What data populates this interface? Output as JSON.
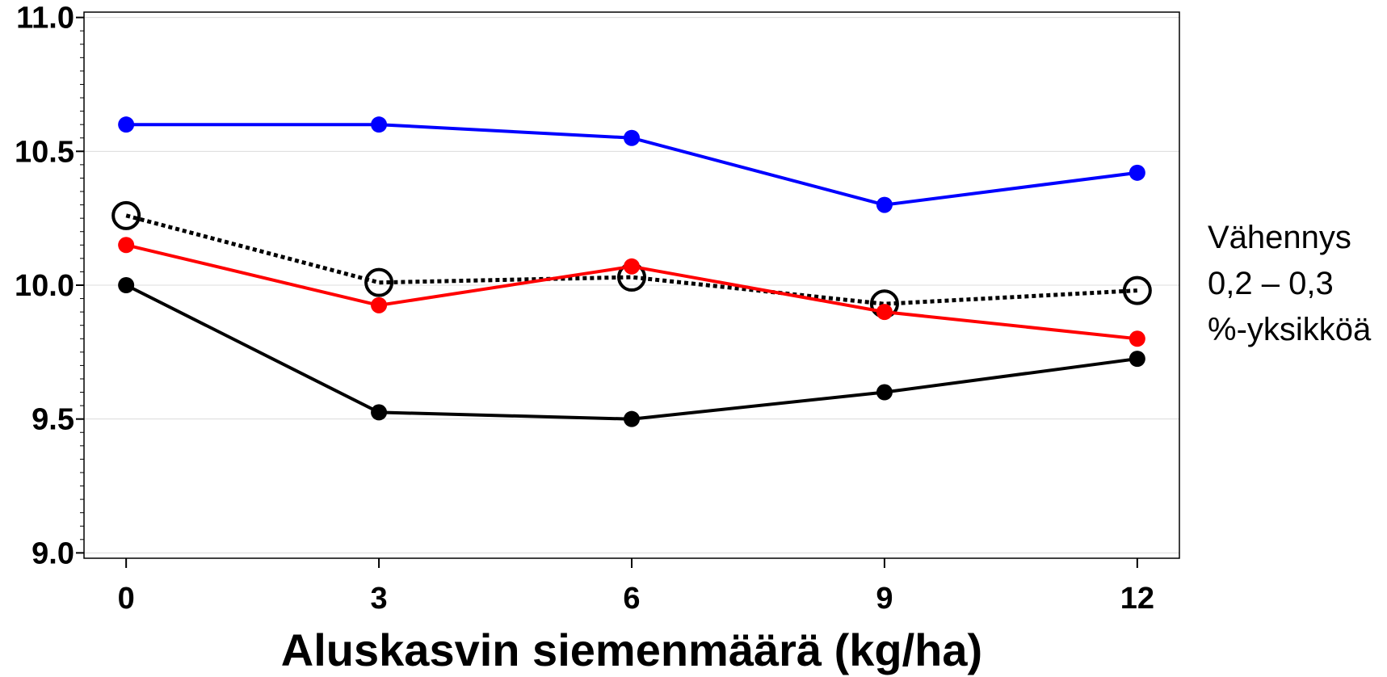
{
  "chart_data": {
    "type": "line",
    "title": "",
    "xlabel": "Aluskasvin siemenmäärä (kg/ha)",
    "ylabel": "",
    "x": [
      0,
      3,
      6,
      9,
      12
    ],
    "xlim": [
      -0.5,
      12.5
    ],
    "ylim": [
      8.98,
      11.02
    ],
    "xticks": [
      "0",
      "3",
      "6",
      "9",
      "12"
    ],
    "yticks": [
      "9.0",
      "9.5",
      "10.0",
      "10.5",
      "11.0"
    ],
    "ytick_values": [
      9.0,
      9.5,
      10.0,
      10.5,
      11.0
    ],
    "grid": "horizontal",
    "legend": "none",
    "series": [
      {
        "values": [
          10.6,
          10.6,
          10.55,
          10.3,
          10.42
        ],
        "color": "#0000ff",
        "style": "solid",
        "marker": "filled-circle"
      },
      {
        "values": [
          10.26,
          10.01,
          10.03,
          9.93,
          9.98
        ],
        "color": "#000000",
        "style": "dotted",
        "marker": "open-circle"
      },
      {
        "values": [
          10.15,
          9.925,
          10.07,
          9.9,
          9.8
        ],
        "color": "#ff0000",
        "style": "solid",
        "marker": "filled-circle"
      },
      {
        "values": [
          10.0,
          9.525,
          9.5,
          9.6,
          9.725
        ],
        "color": "#000000",
        "style": "solid",
        "marker": "filled-circle"
      }
    ],
    "annotation_lines": [
      "Vähennys",
      "0,2 – 0,3",
      "%-yksikköä"
    ]
  }
}
